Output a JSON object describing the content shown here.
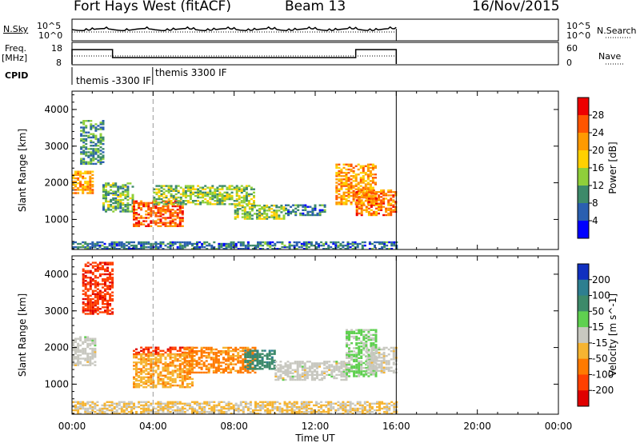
{
  "header": {
    "station": "Fort Hays West (fitACF)",
    "beam": "Beam 13",
    "date": "16/Nov/2015"
  },
  "labels": {
    "nsky": "N.Sky",
    "freq": "Freq.",
    "mhz": "[MHz]",
    "cpid": "CPID",
    "nsearch": "N.Search",
    "nave": "Nave",
    "sky_ticks": [
      "10^5",
      "10^0"
    ],
    "freq_ticks": [
      "18",
      "8"
    ],
    "nsearch_ticks": [
      "10^5",
      "10^0"
    ],
    "nave_ticks": [
      "60",
      "0"
    ]
  },
  "cpid_modes": [
    "themis -3300 IF",
    "themis 3300 IF"
  ],
  "x_axis": {
    "label": "Time UT",
    "ticks": [
      "00:00",
      "04:00",
      "08:00",
      "12:00",
      "16:00",
      "20:00",
      "00:00"
    ]
  },
  "power_panel": {
    "ylabel": "Slant Range [km]",
    "yticks": [
      "1000",
      "2000",
      "3000",
      "4000"
    ],
    "colorbar_label": "Power [dB]",
    "colorbar_ticks": [
      "4",
      "8",
      "12",
      "16",
      "20",
      "24",
      "28"
    ],
    "colors": [
      "#0000ff",
      "#2a5fb0",
      "#3d8a6a",
      "#8fcf3a",
      "#ffd000",
      "#ff9a00",
      "#ff5500",
      "#ee0000"
    ]
  },
  "velocity_panel": {
    "ylabel": "Slant Range [km]",
    "yticks": [
      "1000",
      "2000",
      "3000",
      "4000"
    ],
    "colorbar_label": "Velocity [m s^-1]",
    "colorbar_ticks": [
      "200",
      "100",
      "50",
      "15",
      "-15",
      "-50",
      "-100",
      "-200"
    ],
    "colors": [
      "#1030c0",
      "#2e7f90",
      "#3d8a6a",
      "#5fd050",
      "#c8c8c0",
      "#f6b431",
      "#ff7a00",
      "#ff4000",
      "#e00000"
    ]
  },
  "chart_data": [
    {
      "type": "heatmap",
      "title": "Power",
      "xlabel": "Time UT",
      "ylabel": "Slant Range [km]",
      "xlim_hours": [
        0,
        24
      ],
      "ylim_km": [
        180,
        4500
      ],
      "colorbar": {
        "label": "Power [dB]",
        "range": [
          0,
          32
        ]
      },
      "data_end_hour": 16,
      "regions": [
        {
          "t": [
            0.0,
            1.0
          ],
          "r": [
            1700,
            2300
          ],
          "value": 22
        },
        {
          "t": [
            0.4,
            1.5
          ],
          "r": [
            2500,
            3700
          ],
          "value": 10
        },
        {
          "t": [
            1.5,
            3.0
          ],
          "r": [
            1200,
            2000
          ],
          "value": 12
        },
        {
          "t": [
            3.0,
            5.5
          ],
          "r": [
            800,
            1500
          ],
          "value": 26
        },
        {
          "t": [
            4.0,
            9.0
          ],
          "r": [
            1400,
            1900
          ],
          "value": 14
        },
        {
          "t": [
            8.0,
            10.5
          ],
          "r": [
            1000,
            1400
          ],
          "value": 14
        },
        {
          "t": [
            10.5,
            12.5
          ],
          "r": [
            1100,
            1400
          ],
          "value": 8
        },
        {
          "t": [
            13.0,
            15.0
          ],
          "r": [
            1400,
            2500
          ],
          "value": 22
        },
        {
          "t": [
            14.0,
            16.0
          ],
          "r": [
            1100,
            1800
          ],
          "value": 24
        },
        {
          "t": [
            0.0,
            16.0
          ],
          "r": [
            180,
            400
          ],
          "value": 8
        }
      ]
    },
    {
      "type": "heatmap",
      "title": "Velocity",
      "xlabel": "Time UT",
      "ylabel": "Slant Range [km]",
      "xlim_hours": [
        0,
        24
      ],
      "ylim_km": [
        180,
        4500
      ],
      "colorbar": {
        "label": "Velocity [m s^-1]",
        "range": [
          -250,
          250
        ]
      },
      "data_end_hour": 16,
      "regions": [
        {
          "t": [
            0.0,
            1.2
          ],
          "r": [
            1500,
            2300
          ],
          "value": 0
        },
        {
          "t": [
            0.5,
            2.0
          ],
          "r": [
            2900,
            4300
          ],
          "value": -180
        },
        {
          "t": [
            3.0,
            6.0
          ],
          "r": [
            1800,
            2000
          ],
          "value": -180
        },
        {
          "t": [
            3.0,
            6.0
          ],
          "r": [
            900,
            1800
          ],
          "value": -70
        },
        {
          "t": [
            5.5,
            9.0
          ],
          "r": [
            1300,
            2000
          ],
          "value": -100
        },
        {
          "t": [
            8.5,
            10.0
          ],
          "r": [
            1400,
            1900
          ],
          "value": 120
        },
        {
          "t": [
            10.0,
            13.5
          ],
          "r": [
            1100,
            1600
          ],
          "value": 0
        },
        {
          "t": [
            13.5,
            15.0
          ],
          "r": [
            1200,
            2500
          ],
          "value": 40
        },
        {
          "t": [
            14.5,
            16.0
          ],
          "r": [
            1300,
            2000
          ],
          "value": 0
        },
        {
          "t": [
            0.0,
            16.0
          ],
          "r": [
            180,
            500
          ],
          "value": -30
        }
      ]
    }
  ]
}
